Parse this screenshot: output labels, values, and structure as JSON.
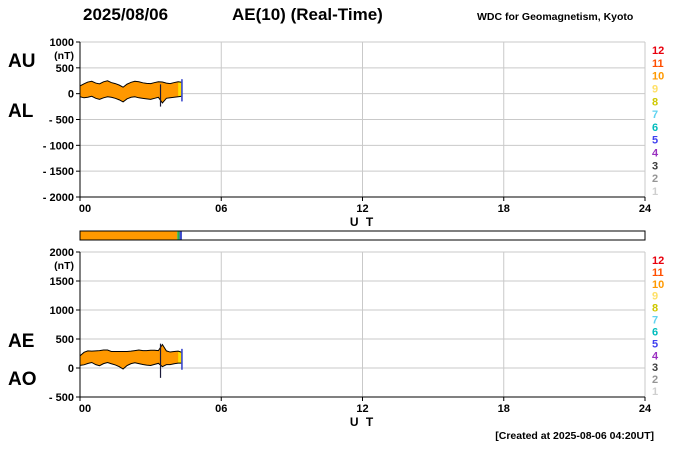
{
  "header": {
    "date": "2025/08/06",
    "title": "AE(10) (Real-Time)",
    "source": "WDC for Geomagnetism, Kyoto"
  },
  "footer": {
    "created": "[Created at 2025-08-06 04:20UT]"
  },
  "legend": {
    "stations": [
      {
        "n": "12",
        "color": "#e8000d"
      },
      {
        "n": "11",
        "color": "#ff4e00"
      },
      {
        "n": "10",
        "color": "#ff9900"
      },
      {
        "n": "9",
        "color": "#ffe066"
      },
      {
        "n": "8",
        "color": "#cfc800"
      },
      {
        "n": "7",
        "color": "#5fd3f0"
      },
      {
        "n": "6",
        "color": "#00bcbc"
      },
      {
        "n": "5",
        "color": "#4040f0"
      },
      {
        "n": "4",
        "color": "#9a30c0"
      },
      {
        "n": "3",
        "color": "#3d3d3d"
      },
      {
        "n": "2",
        "color": "#959595"
      },
      {
        "n": "1",
        "color": "#cfcfcf"
      }
    ]
  },
  "station_bar": {
    "range": [
      0,
      24
    ],
    "segments": [
      {
        "from": 0,
        "to": 4.13,
        "color": "#ff9900"
      },
      {
        "from": 4.13,
        "to": 4.23,
        "color": "#2fb24a"
      },
      {
        "from": 4.23,
        "to": 4.33,
        "color": "#3b49cc"
      }
    ]
  },
  "chart_data": [
    {
      "type": "area",
      "name": "AU-AL panel",
      "left_labels": [
        "AU",
        "AL"
      ],
      "unit": "(nT)",
      "xlabel": "U T",
      "x_range": [
        0,
        24
      ],
      "x_ticks": [
        {
          "t": 0,
          "label": "00"
        },
        {
          "t": 6,
          "label": "06"
        },
        {
          "t": 12,
          "label": "12"
        },
        {
          "t": 18,
          "label": "18"
        },
        {
          "t": 24,
          "label": "24"
        }
      ],
      "ylim": [
        -2000,
        1000
      ],
      "y_ticks": [
        {
          "v": 1000,
          "label": "1000"
        },
        {
          "v": 500,
          "label": "500"
        },
        {
          "v": 0,
          "label": "0"
        },
        {
          "v": -500,
          "label": "- 500"
        },
        {
          "v": -1000,
          "label": "- 1000"
        },
        {
          "v": -1500,
          "label": "- 1500"
        },
        {
          "v": -2000,
          "label": "- 2000"
        }
      ],
      "grid_color": "#c9c9c9",
      "fill_color": "#ff9800",
      "recent_fill": {
        "from": 4.04,
        "color": "#ffe000"
      },
      "x": [
        0,
        0.17,
        0.33,
        0.5,
        0.67,
        0.83,
        1,
        1.17,
        1.33,
        1.5,
        1.67,
        1.83,
        2,
        2.17,
        2.33,
        2.5,
        2.67,
        2.83,
        3,
        3.17,
        3.33,
        3.5,
        3.67,
        3.83,
        4,
        4.17,
        4.33
      ],
      "series": [
        {
          "name": "AU",
          "values": [
            150,
            190,
            225,
            240,
            205,
            190,
            230,
            250,
            215,
            195,
            165,
            125,
            185,
            220,
            240,
            230,
            210,
            200,
            195,
            215,
            230,
            225,
            205,
            195,
            215,
            230,
            220
          ]
        },
        {
          "name": "AL",
          "values": [
            -60,
            -80,
            -70,
            -50,
            -90,
            -110,
            -80,
            -60,
            -70,
            -90,
            -120,
            -160,
            -100,
            -70,
            -60,
            -80,
            -90,
            -100,
            -110,
            -90,
            -70,
            -180,
            -90,
            -80,
            -70,
            -60,
            -50
          ]
        }
      ],
      "spike": {
        "t": 3.42,
        "from": -250,
        "to": 180,
        "color": "#1a1a3a"
      },
      "end_marker": {
        "t": 4.33,
        "from": -150,
        "to": 280,
        "color": "#3b49cc"
      }
    },
    {
      "type": "area",
      "name": "AE-AO panel",
      "left_labels": [
        "AE",
        "AO"
      ],
      "unit": "(nT)",
      "xlabel": "U T",
      "x_range": [
        0,
        24
      ],
      "x_ticks": [
        {
          "t": 0,
          "label": "00"
        },
        {
          "t": 6,
          "label": "06"
        },
        {
          "t": 12,
          "label": "12"
        },
        {
          "t": 18,
          "label": "18"
        },
        {
          "t": 24,
          "label": "24"
        }
      ],
      "ylim": [
        -500,
        2000
      ],
      "y_ticks": [
        {
          "v": 2000,
          "label": "2000"
        },
        {
          "v": 1500,
          "label": "1500"
        },
        {
          "v": 1000,
          "label": "1000"
        },
        {
          "v": 500,
          "label": "500"
        },
        {
          "v": 0,
          "label": "0"
        },
        {
          "v": -500,
          "label": "- 500"
        }
      ],
      "grid_color": "#c9c9c9",
      "fill_color": "#ff9800",
      "recent_fill": {
        "from": 4.04,
        "color": "#ffe000"
      },
      "x": [
        0,
        0.17,
        0.33,
        0.5,
        0.67,
        0.83,
        1,
        1.17,
        1.33,
        1.5,
        1.67,
        1.83,
        2,
        2.17,
        2.33,
        2.5,
        2.67,
        2.83,
        3,
        3.17,
        3.33,
        3.5,
        3.67,
        3.83,
        4,
        4.17,
        4.33
      ],
      "series": [
        {
          "name": "AE",
          "values": [
            210,
            270,
            295,
            290,
            295,
            300,
            310,
            310,
            285,
            285,
            285,
            285,
            285,
            290,
            300,
            310,
            300,
            300,
            305,
            305,
            300,
            405,
            295,
            275,
            285,
            290,
            270
          ]
        },
        {
          "name": "AO",
          "values": [
            45,
            55,
            78,
            95,
            58,
            40,
            75,
            95,
            73,
            53,
            23,
            -18,
            43,
            75,
            90,
            75,
            60,
            50,
            43,
            63,
            80,
            23,
            58,
            58,
            73,
            85,
            85
          ]
        }
      ],
      "spike": {
        "t": 3.42,
        "from": -170,
        "to": 420,
        "color": "#1a1a3a"
      },
      "end_marker": {
        "t": 4.33,
        "from": -30,
        "to": 330,
        "color": "#3b49cc"
      }
    }
  ]
}
